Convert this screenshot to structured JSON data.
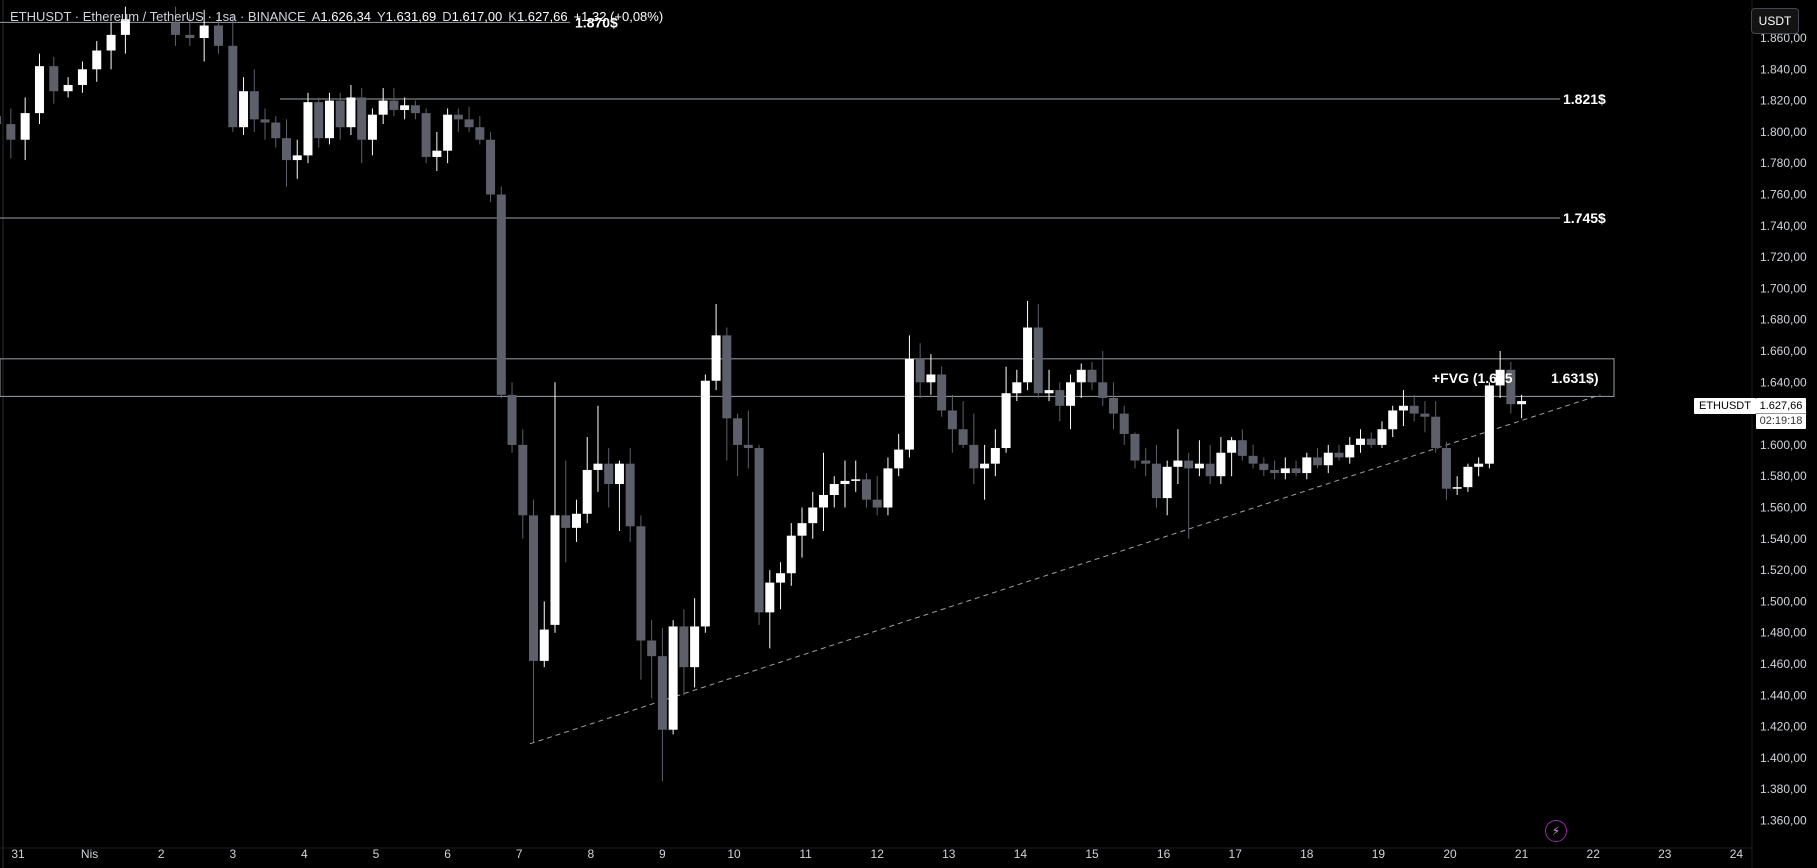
{
  "header": {
    "symbol": "ETHUSDT · Ethereum / TetherUS · 1sa · BINANCE",
    "a_label": "A",
    "a_value": "1.626,34",
    "y_label": "Y",
    "y_value": "1.631,69",
    "d_label": "D",
    "d_value": "1.617,00",
    "k_label": "K",
    "k_value": "1.627,66",
    "change": "+1,32 (+0,08%)"
  },
  "currency_button": "USDT",
  "symbol_tag": "ETHUSDT",
  "price_tag": {
    "price": "1.627,66",
    "countdown": "02:19:18"
  },
  "annotations": {
    "level_1870": "1.870$",
    "level_1821": "1.821$",
    "level_1745": "1.745$",
    "fvg_label": "+FVG (1.655",
    "fvg_level": "1.631$)"
  },
  "colors": {
    "background": "#000000",
    "up": "#ffffff",
    "down": "#5d606b",
    "text": "#d1d4dc"
  },
  "chart_data": {
    "type": "candlestick",
    "y_ticks": [
      "1.860,00",
      "1.840,00",
      "1.820,00",
      "1.800,00",
      "1.780,00",
      "1.760,00",
      "1.740,00",
      "1.720,00",
      "1.700,00",
      "1.680,00",
      "1.660,00",
      "1.640,00",
      "1.620,00",
      "1.600,00",
      "1.580,00",
      "1.560,00",
      "1.540,00",
      "1.520,00",
      "1.500,00",
      "1.480,00",
      "1.460,00",
      "1.440,00",
      "1.420,00",
      "1.400,00",
      "1.380,00",
      "1.360,00"
    ],
    "x_ticks": [
      "31",
      "Nis",
      "2",
      "3",
      "4",
      "5",
      "6",
      "7",
      "8",
      "9",
      "10",
      "11",
      "12",
      "13",
      "14",
      "15",
      "16",
      "17",
      "18",
      "19",
      "20",
      "21",
      "22",
      "23",
      "24"
    ],
    "ylim": [
      1352,
      1872
    ],
    "horizontal_levels": [
      1870,
      1821,
      1745,
      1655,
      1631
    ],
    "trendline": {
      "start": [
        7.15,
        1409
      ],
      "end": [
        22.1,
        1632
      ]
    },
    "candles": [
      [
        -0.5,
        1813,
        1815,
        1800,
        1810
      ],
      [
        -0.3,
        1810,
        1818,
        1797,
        1805
      ],
      [
        -0.1,
        1805,
        1815,
        1783,
        1795
      ],
      [
        0.1,
        1795,
        1822,
        1782,
        1812
      ],
      [
        0.3,
        1812,
        1850,
        1805,
        1842
      ],
      [
        0.5,
        1842,
        1848,
        1818,
        1826
      ],
      [
        0.7,
        1826,
        1835,
        1822,
        1830
      ],
      [
        0.9,
        1830,
        1845,
        1825,
        1840
      ],
      [
        1.1,
        1840,
        1858,
        1832,
        1852
      ],
      [
        1.3,
        1852,
        1870,
        1840,
        1862
      ],
      [
        1.5,
        1862,
        1880,
        1850,
        1872
      ],
      [
        2.2,
        1870,
        1880,
        1855,
        1862
      ],
      [
        2.4,
        1862,
        1875,
        1855,
        1860
      ],
      [
        2.6,
        1860,
        1878,
        1845,
        1868
      ],
      [
        2.8,
        1868,
        1875,
        1850,
        1855
      ],
      [
        3.0,
        1855,
        1875,
        1800,
        1803
      ],
      [
        3.15,
        1803,
        1835,
        1798,
        1826
      ],
      [
        3.3,
        1826,
        1840,
        1800,
        1808
      ],
      [
        3.45,
        1808,
        1815,
        1795,
        1806
      ],
      [
        3.6,
        1806,
        1810,
        1790,
        1796
      ],
      [
        3.75,
        1796,
        1808,
        1765,
        1782
      ],
      [
        3.9,
        1782,
        1795,
        1770,
        1785
      ],
      [
        4.05,
        1785,
        1825,
        1780,
        1819
      ],
      [
        4.2,
        1819,
        1822,
        1790,
        1796
      ],
      [
        4.35,
        1796,
        1825,
        1792,
        1820
      ],
      [
        4.5,
        1820,
        1825,
        1795,
        1803
      ],
      [
        4.65,
        1803,
        1830,
        1798,
        1822
      ],
      [
        4.8,
        1822,
        1828,
        1780,
        1795
      ],
      [
        4.95,
        1795,
        1815,
        1785,
        1811
      ],
      [
        5.1,
        1811,
        1828,
        1805,
        1820
      ],
      [
        5.25,
        1820,
        1828,
        1810,
        1814
      ],
      [
        5.4,
        1814,
        1822,
        1808,
        1817
      ],
      [
        5.55,
        1817,
        1820,
        1808,
        1812
      ],
      [
        5.7,
        1812,
        1815,
        1780,
        1784
      ],
      [
        5.85,
        1784,
        1800,
        1775,
        1788
      ],
      [
        6.0,
        1788,
        1815,
        1780,
        1811
      ],
      [
        6.15,
        1811,
        1815,
        1800,
        1808
      ],
      [
        6.3,
        1808,
        1816,
        1800,
        1803
      ],
      [
        6.45,
        1803,
        1810,
        1792,
        1795
      ],
      [
        6.6,
        1795,
        1800,
        1755,
        1760
      ],
      [
        6.75,
        1760,
        1765,
        1630,
        1632
      ],
      [
        6.9,
        1632,
        1640,
        1595,
        1600
      ],
      [
        7.05,
        1600,
        1610,
        1540,
        1555
      ],
      [
        7.2,
        1555,
        1565,
        1410,
        1462
      ],
      [
        7.35,
        1462,
        1500,
        1458,
        1482
      ],
      [
        7.5,
        1485,
        1640,
        1480,
        1555
      ],
      [
        7.65,
        1555,
        1590,
        1525,
        1547
      ],
      [
        7.8,
        1547,
        1565,
        1538,
        1556
      ],
      [
        7.95,
        1556,
        1605,
        1550,
        1584
      ],
      [
        8.1,
        1584,
        1625,
        1570,
        1588
      ],
      [
        8.25,
        1588,
        1598,
        1560,
        1575
      ],
      [
        8.4,
        1575,
        1590,
        1545,
        1588
      ],
      [
        8.55,
        1588,
        1598,
        1538,
        1548
      ],
      [
        8.7,
        1548,
        1555,
        1450,
        1475
      ],
      [
        8.85,
        1475,
        1488,
        1438,
        1465
      ],
      [
        9.0,
        1465,
        1483,
        1385,
        1418
      ],
      [
        9.15,
        1418,
        1488,
        1415,
        1484
      ],
      [
        9.3,
        1484,
        1495,
        1440,
        1458
      ],
      [
        9.45,
        1458,
        1502,
        1445,
        1484
      ],
      [
        9.6,
        1484,
        1645,
        1480,
        1641
      ],
      [
        9.75,
        1641,
        1690,
        1635,
        1670
      ],
      [
        9.9,
        1670,
        1675,
        1590,
        1617
      ],
      [
        10.05,
        1617,
        1620,
        1580,
        1600
      ],
      [
        10.2,
        1600,
        1622,
        1585,
        1598
      ],
      [
        10.35,
        1598,
        1600,
        1485,
        1493
      ],
      [
        10.5,
        1493,
        1520,
        1470,
        1512
      ],
      [
        10.65,
        1512,
        1525,
        1495,
        1518
      ],
      [
        10.8,
        1518,
        1550,
        1510,
        1542
      ],
      [
        10.95,
        1542,
        1560,
        1528,
        1550
      ],
      [
        11.1,
        1550,
        1570,
        1540,
        1560
      ],
      [
        11.25,
        1560,
        1595,
        1545,
        1568
      ],
      [
        11.4,
        1568,
        1580,
        1560,
        1575
      ],
      [
        11.55,
        1575,
        1590,
        1560,
        1577
      ],
      [
        11.7,
        1577,
        1590,
        1570,
        1578
      ],
      [
        11.85,
        1578,
        1582,
        1560,
        1565
      ],
      [
        12.0,
        1565,
        1580,
        1555,
        1560
      ],
      [
        12.15,
        1560,
        1592,
        1555,
        1585
      ],
      [
        12.3,
        1585,
        1607,
        1580,
        1597
      ],
      [
        12.45,
        1597,
        1670,
        1592,
        1655
      ],
      [
        12.6,
        1655,
        1665,
        1630,
        1640
      ],
      [
        12.75,
        1640,
        1658,
        1632,
        1645
      ],
      [
        12.9,
        1645,
        1650,
        1618,
        1622
      ],
      [
        13.05,
        1622,
        1632,
        1595,
        1610
      ],
      [
        13.2,
        1610,
        1628,
        1598,
        1600
      ],
      [
        13.35,
        1600,
        1620,
        1575,
        1585
      ],
      [
        13.5,
        1585,
        1600,
        1565,
        1588
      ],
      [
        13.65,
        1588,
        1610,
        1580,
        1598
      ],
      [
        13.8,
        1598,
        1650,
        1595,
        1633
      ],
      [
        13.95,
        1633,
        1648,
        1628,
        1640
      ],
      [
        14.1,
        1640,
        1692,
        1635,
        1675
      ],
      [
        14.25,
        1675,
        1690,
        1630,
        1633
      ],
      [
        14.4,
        1633,
        1648,
        1628,
        1635
      ],
      [
        14.55,
        1635,
        1640,
        1615,
        1625
      ],
      [
        14.7,
        1625,
        1645,
        1610,
        1640
      ],
      [
        14.85,
        1640,
        1652,
        1630,
        1648
      ],
      [
        15.0,
        1648,
        1653,
        1635,
        1640
      ],
      [
        15.15,
        1640,
        1660,
        1625,
        1630
      ],
      [
        15.3,
        1630,
        1640,
        1610,
        1620
      ],
      [
        15.45,
        1620,
        1625,
        1600,
        1607
      ],
      [
        15.6,
        1607,
        1608,
        1585,
        1590
      ],
      [
        15.75,
        1590,
        1598,
        1580,
        1588
      ],
      [
        15.9,
        1588,
        1600,
        1560,
        1566
      ],
      [
        16.05,
        1566,
        1590,
        1555,
        1586
      ],
      [
        16.2,
        1586,
        1610,
        1575,
        1590
      ],
      [
        16.35,
        1590,
        1595,
        1540,
        1585
      ],
      [
        16.5,
        1585,
        1603,
        1580,
        1588
      ],
      [
        16.65,
        1588,
        1600,
        1575,
        1580
      ],
      [
        16.8,
        1580,
        1605,
        1575,
        1595
      ],
      [
        16.95,
        1595,
        1605,
        1580,
        1603
      ],
      [
        17.1,
        1603,
        1610,
        1590,
        1593
      ],
      [
        17.25,
        1593,
        1600,
        1585,
        1588
      ],
      [
        17.4,
        1588,
        1592,
        1580,
        1584
      ],
      [
        17.55,
        1584,
        1590,
        1578,
        1582
      ],
      [
        17.7,
        1582,
        1592,
        1578,
        1585
      ],
      [
        17.85,
        1585,
        1590,
        1580,
        1582
      ],
      [
        18.0,
        1582,
        1595,
        1578,
        1592
      ],
      [
        18.15,
        1592,
        1598,
        1585,
        1587
      ],
      [
        18.3,
        1587,
        1600,
        1582,
        1595
      ],
      [
        18.45,
        1595,
        1600,
        1590,
        1592
      ],
      [
        18.6,
        1592,
        1605,
        1588,
        1600
      ],
      [
        18.75,
        1600,
        1610,
        1595,
        1604
      ],
      [
        18.9,
        1604,
        1608,
        1598,
        1600
      ],
      [
        19.05,
        1600,
        1615,
        1598,
        1610
      ],
      [
        19.2,
        1610,
        1625,
        1605,
        1622
      ],
      [
        19.35,
        1622,
        1635,
        1612,
        1625
      ],
      [
        19.5,
        1625,
        1632,
        1615,
        1620
      ],
      [
        19.65,
        1620,
        1628,
        1608,
        1618
      ],
      [
        19.8,
        1618,
        1628,
        1595,
        1598
      ],
      [
        19.95,
        1598,
        1602,
        1565,
        1572
      ],
      [
        20.1,
        1572,
        1580,
        1568,
        1573
      ],
      [
        20.25,
        1573,
        1588,
        1570,
        1586
      ],
      [
        20.4,
        1586,
        1592,
        1580,
        1588
      ],
      [
        20.55,
        1588,
        1640,
        1585,
        1638
      ],
      [
        20.7,
        1638,
        1660,
        1630,
        1648
      ],
      [
        20.85,
        1648,
        1653,
        1620,
        1626
      ],
      [
        21.0,
        1626,
        1632,
        1617,
        1628
      ]
    ]
  }
}
